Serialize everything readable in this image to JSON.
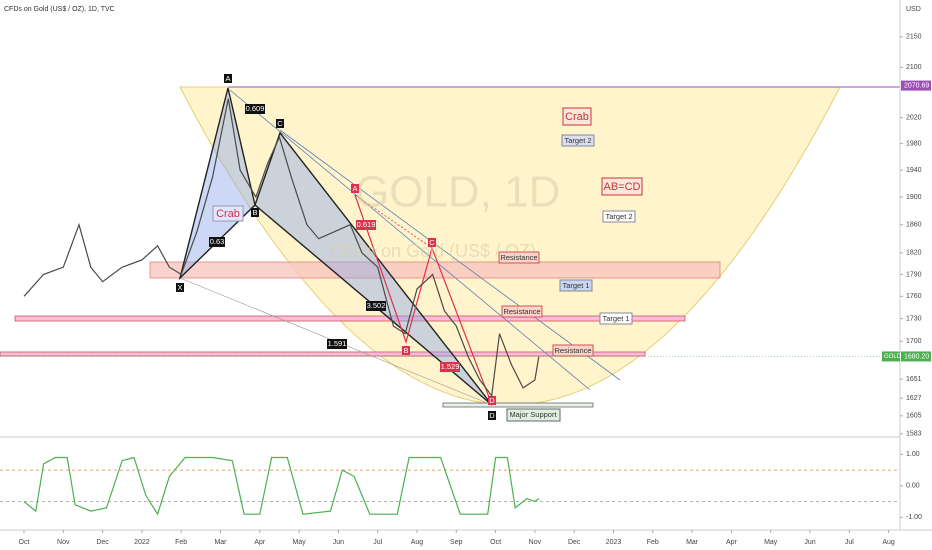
{
  "header": {
    "title": "CFDs on Gold (US$ / OZ), 1D, TVC",
    "currency": "USD",
    "watermark": "GOLD, 1D",
    "watermark_sub": "CFDs on Gold (US$ / OZ)"
  },
  "chart_data": {
    "type": "line",
    "log_scale": true,
    "color": "#4a4a4a",
    "x": [
      0,
      0.5,
      1,
      1.4,
      1.7,
      2,
      2.5,
      3,
      3.4,
      3.7,
      4,
      4.4,
      4.8,
      5.2,
      5.5,
      5.9,
      6.2,
      6.5,
      6.8,
      7.2,
      7.5,
      7.9,
      8.3,
      8.6,
      9,
      9.4,
      9.7,
      10,
      10.4,
      10.7,
      11,
      11.3,
      11.6,
      11.9,
      12.1,
      12.4,
      12.7,
      13,
      13.1
    ],
    "values": [
      1760,
      1790,
      1800,
      1860,
      1800,
      1780,
      1800,
      1810,
      1830,
      1800,
      1790,
      1850,
      1930,
      2050,
      1940,
      1900,
      1950,
      1990,
      1930,
      1860,
      1840,
      1850,
      1860,
      1820,
      1800,
      1720,
      1710,
      1770,
      1790,
      1740,
      1720,
      1680,
      1650,
      1630,
      1710,
      1670,
      1640,
      1650,
      1680
    ],
    "xlim": [
      -0.61,
      22.29
    ],
    "xticks": [
      {
        "value": 0,
        "label": "Oct"
      },
      {
        "value": 1,
        "label": "Nov"
      },
      {
        "value": 2,
        "label": "Dec"
      },
      {
        "value": 3,
        "label": "2022"
      },
      {
        "value": 4,
        "label": "Feb"
      },
      {
        "value": 5,
        "label": "Mar"
      },
      {
        "value": 6,
        "label": "Apr"
      },
      {
        "value": 7,
        "label": "May"
      },
      {
        "value": 8,
        "label": "Jun"
      },
      {
        "value": 9,
        "label": "Jul"
      },
      {
        "value": 10,
        "label": "Aug"
      },
      {
        "value": 11,
        "label": "Sep"
      },
      {
        "value": 12,
        "label": "Oct"
      },
      {
        "value": 13,
        "label": "Nov"
      },
      {
        "value": 14,
        "label": "Dec"
      },
      {
        "value": 15,
        "label": "2023"
      },
      {
        "value": 16,
        "label": "Feb"
      },
      {
        "value": 17,
        "label": "Mar"
      },
      {
        "value": 18,
        "label": "Apr"
      },
      {
        "value": 19,
        "label": "May"
      },
      {
        "value": 20,
        "label": "Jun"
      },
      {
        "value": 21,
        "label": "Jul"
      },
      {
        "value": 22,
        "label": "Aug"
      }
    ],
    "ylim": [
      1579,
      2212
    ],
    "yticks": [
      2150,
      2100,
      2020,
      1980,
      1940,
      1900,
      1860,
      1820,
      1790,
      1760,
      1730,
      1700,
      1651,
      1627,
      1605,
      1583
    ],
    "level_price": 2070.69,
    "last_price": {
      "value": 1680.2,
      "label": "1680.20"
    },
    "symbol": "GOLD",
    "oscillator": {
      "color": "#4caf50",
      "x": [
        0,
        0.3,
        0.5,
        0.8,
        1.1,
        1.3,
        1.7,
        2.1,
        2.5,
        2.8,
        3.1,
        3.4,
        3.7,
        4.1,
        4.8,
        5.3,
        5.6,
        6,
        6.3,
        6.7,
        7.1,
        7.8,
        8.1,
        8.4,
        8.8,
        9.5,
        9.8,
        10.6,
        11.1,
        11.8,
        12,
        12.3,
        12.5,
        12.8,
        13,
        13.1
      ],
      "values": [
        -0.5,
        -0.8,
        0.7,
        0.9,
        0.9,
        -0.6,
        -0.8,
        -0.7,
        0.8,
        0.9,
        -0.3,
        -0.9,
        0.3,
        0.9,
        0.9,
        0.8,
        -0.9,
        -0.9,
        0.9,
        0.9,
        -0.9,
        -0.8,
        0.5,
        0.3,
        -0.9,
        -0.9,
        0.9,
        0.9,
        -0.9,
        -0.9,
        0.9,
        0.9,
        -0.7,
        -0.4,
        -0.5,
        -0.4
      ],
      "ylim": [
        -1.4,
        1.55
      ],
      "yticks": [
        {
          "value": 1,
          "label": "1.00"
        },
        {
          "value": 0,
          "label": "0.00"
        },
        {
          "value": -1,
          "label": "-1.00"
        }
      ],
      "levels": [
        0.5,
        -0.5
      ]
    }
  },
  "annotations": {
    "crab_points": [
      "X",
      "A",
      "B",
      "C",
      "D"
    ],
    "crab_label": "Crab",
    "crab_ratios": [
      "0.609",
      "0.63",
      "1.591"
    ],
    "abcd_points": [
      "A",
      "B",
      "C",
      "D"
    ],
    "abcd_ratios": [
      "0.619",
      "3.502",
      "1.529"
    ],
    "crab_title": "Crab",
    "abcd_title": "AB=CD",
    "targets": [
      "Target 2",
      "Target 1",
      "Target 2",
      "Target 1"
    ],
    "resistance": [
      "Resistance",
      "Resistance",
      "Resistance"
    ],
    "support": "Major Support"
  }
}
